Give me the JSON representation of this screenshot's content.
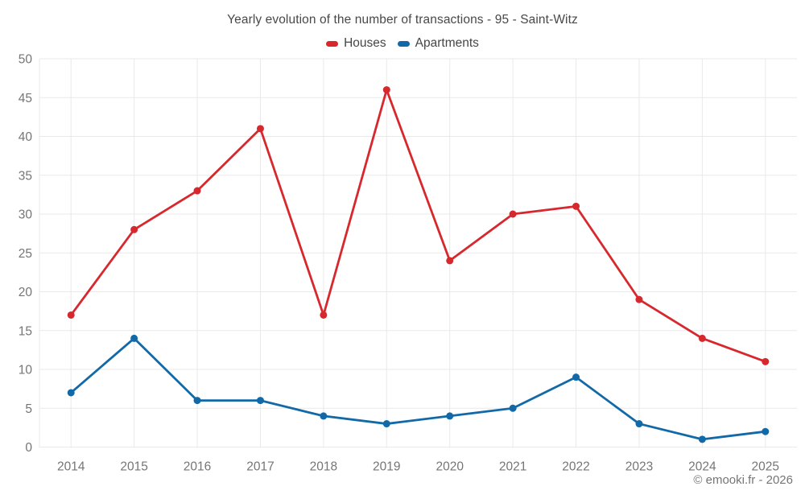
{
  "header": {
    "title": "Yearly evolution of the number of transactions - 95 - Saint-Witz"
  },
  "footer": {
    "credit": "© emooki.fr - 2026"
  },
  "chart_data": {
    "type": "line",
    "title": "Yearly evolution of the number of transactions - 95 - Saint-Witz",
    "x": [
      "2014",
      "2015",
      "2016",
      "2017",
      "2018",
      "2019",
      "2020",
      "2021",
      "2022",
      "2023",
      "2024",
      "2025"
    ],
    "series": [
      {
        "name": "Houses",
        "color": "#d7282e",
        "values": [
          17,
          28,
          33,
          41,
          17,
          46,
          24,
          30,
          31,
          19,
          14,
          11
        ]
      },
      {
        "name": "Apartments",
        "color": "#1269a8",
        "values": [
          7,
          14,
          6,
          6,
          4,
          3,
          4,
          5,
          9,
          3,
          1,
          2
        ]
      }
    ],
    "ylim": [
      0,
      50
    ],
    "ytick_step": 5,
    "yticks": [
      0,
      5,
      10,
      15,
      20,
      25,
      30,
      35,
      40,
      45,
      50
    ],
    "grid": true,
    "legend_position": "top",
    "styles": {
      "grid_color": "#e9e9e9",
      "tick_label_color": "#757575",
      "title_color": "#484848",
      "line_width": 2.8,
      "marker_radius": 4.5
    }
  }
}
